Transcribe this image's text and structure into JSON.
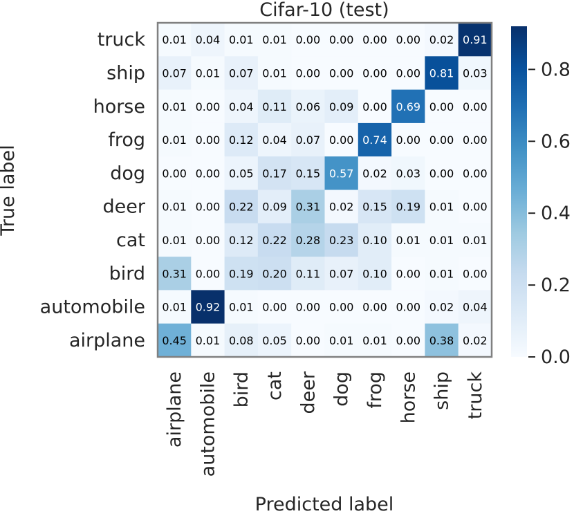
{
  "chart_data": {
    "type": "heatmap",
    "title": "Cifar-10 (test)",
    "xlabel": "Predicted label",
    "ylabel": "True label",
    "x_categories": [
      "airplane",
      "automobile",
      "bird",
      "cat",
      "deer",
      "dog",
      "frog",
      "horse",
      "ship",
      "truck"
    ],
    "y_categories": [
      "truck",
      "ship",
      "horse",
      "frog",
      "dog",
      "deer",
      "cat",
      "bird",
      "automobile",
      "airplane"
    ],
    "values": [
      [
        0.01,
        0.04,
        0.01,
        0.01,
        0.0,
        0.0,
        0.0,
        0.0,
        0.02,
        0.91
      ],
      [
        0.07,
        0.01,
        0.07,
        0.01,
        0.0,
        0.0,
        0.0,
        0.0,
        0.81,
        0.03
      ],
      [
        0.01,
        0.0,
        0.04,
        0.11,
        0.06,
        0.09,
        0.0,
        0.69,
        0.0,
        0.0
      ],
      [
        0.01,
        0.0,
        0.12,
        0.04,
        0.07,
        0.0,
        0.74,
        0.0,
        0.0,
        0.0
      ],
      [
        0.0,
        0.0,
        0.05,
        0.17,
        0.15,
        0.57,
        0.02,
        0.03,
        0.0,
        0.0
      ],
      [
        0.01,
        0.0,
        0.22,
        0.09,
        0.31,
        0.02,
        0.15,
        0.19,
        0.01,
        0.0
      ],
      [
        0.01,
        0.0,
        0.12,
        0.22,
        0.28,
        0.23,
        0.1,
        0.01,
        0.01,
        0.01
      ],
      [
        0.31,
        0.0,
        0.19,
        0.2,
        0.11,
        0.07,
        0.1,
        0.0,
        0.01,
        0.0
      ],
      [
        0.01,
        0.92,
        0.01,
        0.0,
        0.0,
        0.0,
        0.0,
        0.0,
        0.02,
        0.04
      ],
      [
        0.45,
        0.01,
        0.08,
        0.05,
        0.0,
        0.01,
        0.01,
        0.0,
        0.38,
        0.02
      ]
    ],
    "colormap": "Blues",
    "colorbar": {
      "range": [
        0.0,
        0.92
      ],
      "ticks": [
        0.0,
        0.2,
        0.4,
        0.6,
        0.8
      ],
      "tick_labels": [
        "0.0",
        "0.2",
        "0.4",
        "0.6",
        "0.8"
      ]
    },
    "grid": false
  }
}
